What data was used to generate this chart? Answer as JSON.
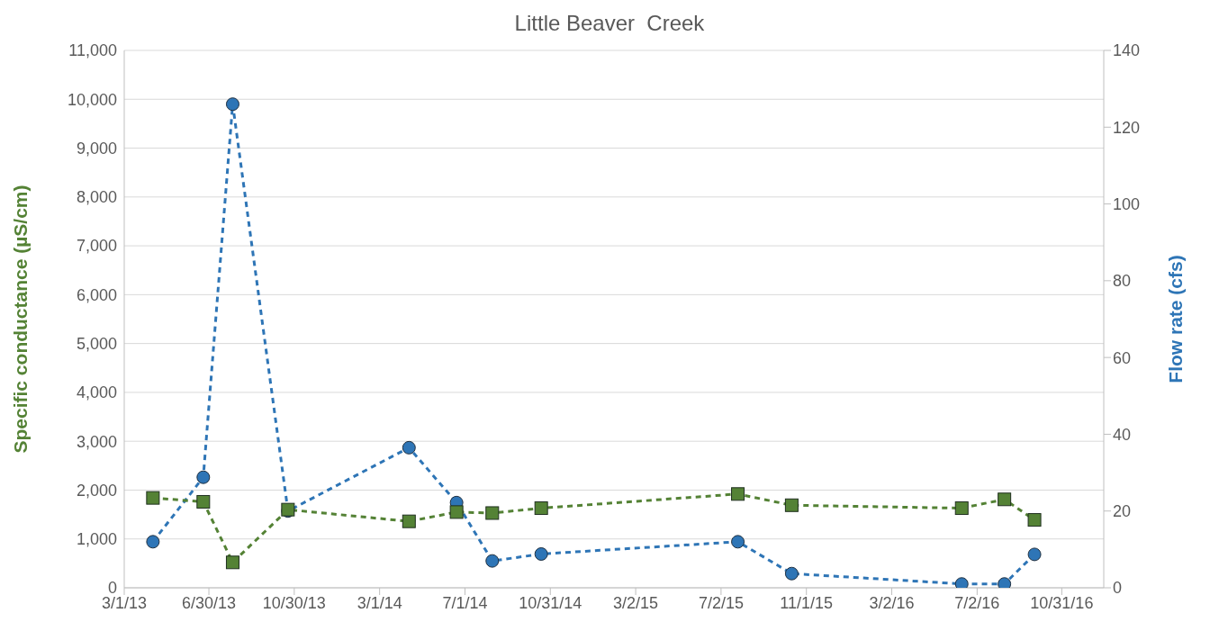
{
  "chart_data": {
    "type": "line",
    "title": "Little Beaver  Creek",
    "ylabel": "Specific conductance (µS/cm)",
    "y2label": "Flow rate (cfs)",
    "x": [
      "2013-04-11",
      "2013-06-22",
      "2013-08-03",
      "2013-10-21",
      "2014-04-12",
      "2014-06-19",
      "2014-08-09",
      "2014-10-18",
      "2015-07-26",
      "2015-10-11",
      "2016-06-10",
      "2016-08-10",
      "2016-09-22"
    ],
    "series": [
      {
        "color": "#548235",
        "marker": "square",
        "values": [
          1840,
          1760,
          520,
          1600,
          1360,
          1550,
          1530,
          1630,
          1920,
          1690,
          1630,
          1810,
          1390
        ]
      },
      {
        "color": "#2e75b6",
        "marker": "circle",
        "axis": "y2",
        "values": [
          12,
          28.8,
          126,
          20,
          36.5,
          22.2,
          7,
          8.8,
          12,
          3.7,
          1,
          1,
          8.7
        ]
      }
    ],
    "xlim": [
      "2013-03-01",
      "2016-12-30"
    ],
    "xticks": [
      {
        "value": "2013-03-01",
        "label": "3/1/13"
      },
      {
        "value": "2013-06-30",
        "label": "6/30/13"
      },
      {
        "value": "2013-10-30",
        "label": "10/30/13"
      },
      {
        "value": "2014-03-01",
        "label": "3/1/14"
      },
      {
        "value": "2014-07-01",
        "label": "7/1/14"
      },
      {
        "value": "2014-10-31",
        "label": "10/31/14"
      },
      {
        "value": "2015-03-02",
        "label": "3/2/15"
      },
      {
        "value": "2015-07-02",
        "label": "7/2/15"
      },
      {
        "value": "2015-11-01",
        "label": "11/1/15"
      },
      {
        "value": "2016-03-02",
        "label": "3/2/16"
      },
      {
        "value": "2016-07-02",
        "label": "7/2/16"
      },
      {
        "value": "2016-10-31",
        "label": "10/31/16"
      }
    ],
    "ylim": [
      0,
      11000
    ],
    "yticks": [
      0,
      {
        "value": 1000,
        "label": "1,000"
      },
      {
        "value": 2000,
        "label": "2,000"
      },
      {
        "value": 3000,
        "label": "3,000"
      },
      {
        "value": 4000,
        "label": "4,000"
      },
      {
        "value": 5000,
        "label": "5,000"
      },
      {
        "value": 6000,
        "label": "6,000"
      },
      {
        "value": 7000,
        "label": "7,000"
      },
      {
        "value": 8000,
        "label": "8,000"
      },
      {
        "value": 9000,
        "label": "9,000"
      },
      {
        "value": 10000,
        "label": "10,000"
      },
      {
        "value": 11000,
        "label": "11,000"
      }
    ],
    "y2lim": [
      0,
      140
    ],
    "y2ticks": [
      0,
      20,
      40,
      60,
      80,
      100,
      120,
      140
    ],
    "grid": "y",
    "line_style": "dashed",
    "legend": false
  }
}
